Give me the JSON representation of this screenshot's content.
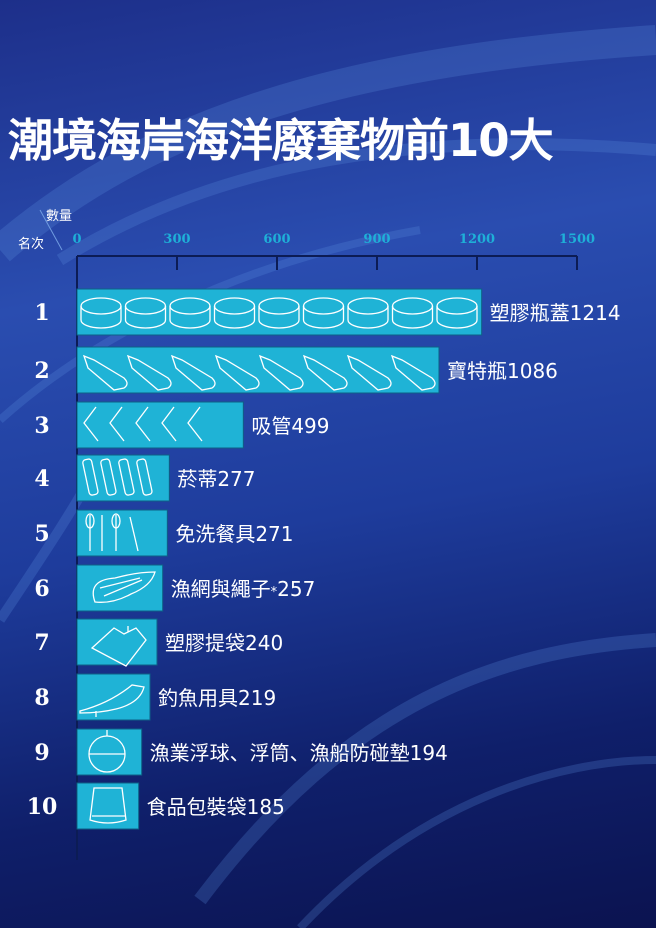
{
  "title": "潮境海岸海洋廢棄物前10大",
  "colors": {
    "bar": "#1fb3d6",
    "bar_stroke": "#0e5f86",
    "axis": "#0c1c55",
    "tick_label": "#1eb0d8",
    "text": "#ffffff"
  },
  "chart_data": {
    "type": "bar",
    "orientation": "horizontal",
    "title": "潮境海岸海洋廢棄物前10大",
    "xlabel": "數量",
    "ylabel": "名次",
    "xlim": [
      0,
      1500
    ],
    "xticks": [
      "0",
      "300",
      "600",
      "900",
      "1200",
      "1500"
    ],
    "ranks": [
      "1",
      "2",
      "3",
      "4",
      "5",
      "6",
      "7",
      "8",
      "9",
      "10"
    ],
    "categories": [
      "塑膠瓶蓋",
      "寶特瓶",
      "吸管",
      "菸蒂",
      "免洗餐具",
      "漁網與繩子",
      "塑膠提袋",
      "釣魚用具",
      "漁業浮球、浮筒、漁船防碰墊",
      "食品包裝袋"
    ],
    "markers": [
      "",
      "",
      "",
      "",
      "",
      "*",
      "",
      "",
      "",
      ""
    ],
    "values": [
      1214,
      1086,
      499,
      277,
      271,
      257,
      240,
      219,
      194,
      185
    ],
    "icons": [
      "bottle-cap-icon",
      "pet-bottle-icon",
      "straw-icon",
      "cigarette-butt-icon",
      "cutlery-icon",
      "fishing-net-icon",
      "plastic-bag-icon",
      "fishing-lure-icon",
      "buoy-icon",
      "food-wrapper-icon"
    ]
  }
}
